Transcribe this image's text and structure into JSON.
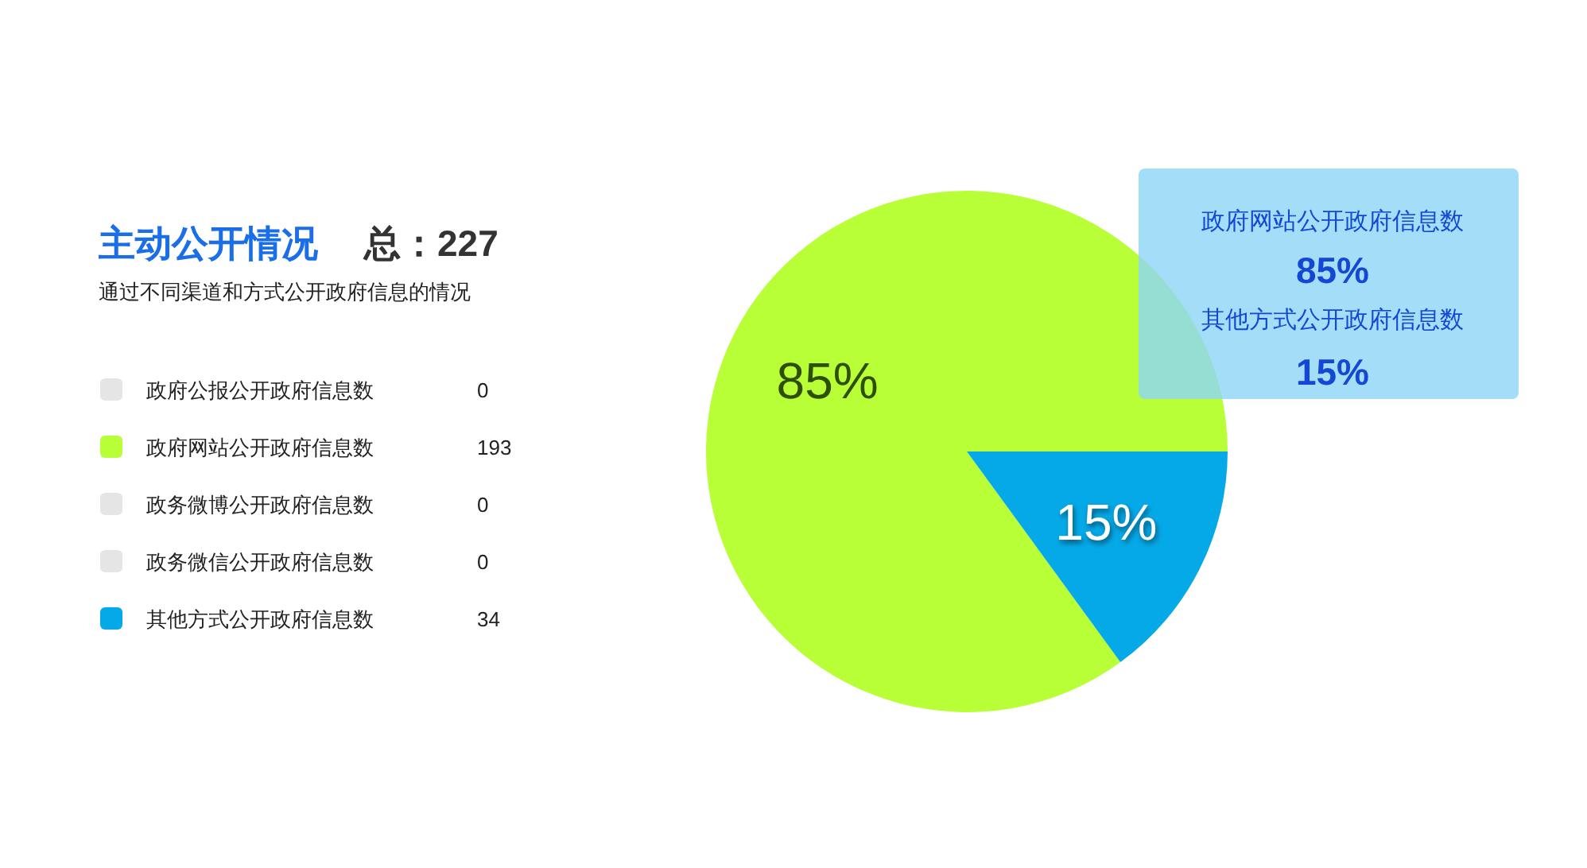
{
  "chart_data": {
    "type": "pie",
    "title": "主动公开情况",
    "subtitle": "通过不同渠道和方式公开政府信息的情况",
    "categories": [
      "政府公报公开政府信息数",
      "政府网站公开政府信息数",
      "政务微博公开政府信息数",
      "政务微信公开政府信息数",
      "其他方式公开政府信息数"
    ],
    "values": [
      0,
      193,
      0,
      0,
      34
    ],
    "colors": [
      "#e5e5e5",
      "#b8ff38",
      "#e5e5e5",
      "#e5e5e5",
      "#06a9e8"
    ],
    "value_labels": [
      "0",
      "193",
      "0",
      "0",
      "34"
    ],
    "legend": "left",
    "annotations": [
      "总：227",
      "85%",
      "15%",
      "政府网站公开政府信息数",
      "85%",
      "其他方式公开政府信息数",
      "15%"
    ]
  }
}
